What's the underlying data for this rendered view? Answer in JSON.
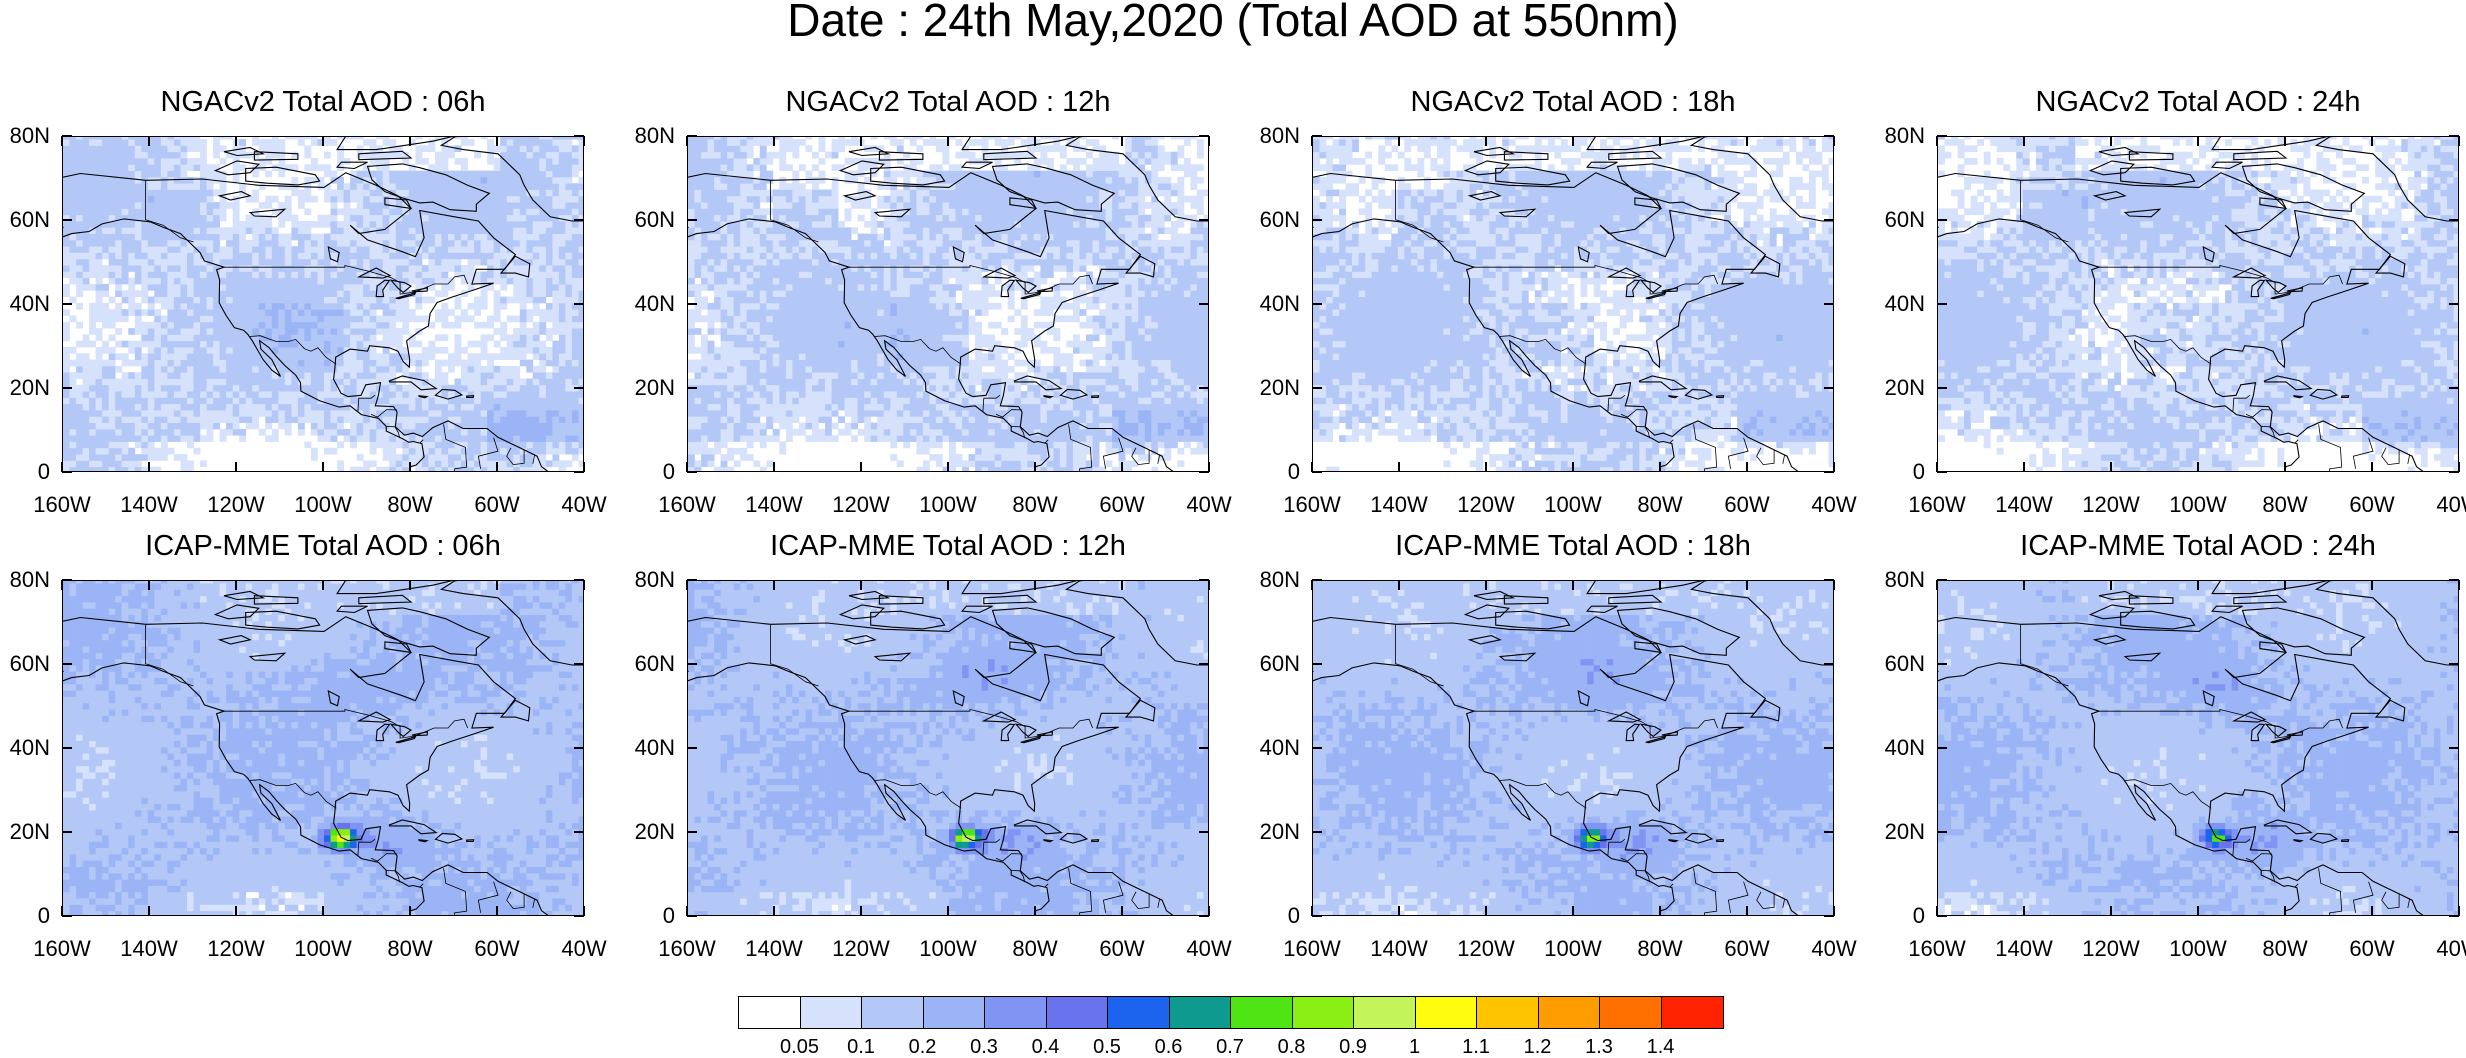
{
  "title": "Date : 24th May,2020 (Total AOD at 550nm)",
  "panels": [
    {
      "title": "NGACv2 Total AOD : 06h"
    },
    {
      "title": "NGACv2 Total AOD : 12h"
    },
    {
      "title": "NGACv2 Total AOD : 18h"
    },
    {
      "title": "NGACv2 Total AOD : 24h"
    },
    {
      "title": "ICAP-MME Total AOD : 06h"
    },
    {
      "title": "ICAP-MME Total AOD : 12h"
    },
    {
      "title": "ICAP-MME Total AOD : 18h"
    },
    {
      "title": "ICAP-MME Total AOD : 24h"
    }
  ],
  "axes": {
    "lat_labels": [
      "80N",
      "60N",
      "40N",
      "20N",
      "0"
    ],
    "lon_labels": [
      "160W",
      "140W",
      "120W",
      "100W",
      "80W",
      "60W",
      "40W"
    ]
  },
  "colorbar": {
    "labels": [
      "0.05",
      "0.1",
      "0.2",
      "0.3",
      "0.4",
      "0.5",
      "0.6",
      "0.7",
      "0.8",
      "0.9",
      "1",
      "1.1",
      "1.2",
      "1.3",
      "1.4"
    ],
    "colors": [
      "#ffffff",
      "#d6e1fb",
      "#b4c8f7",
      "#9ab4f6",
      "#7f94f3",
      "#6a73ee",
      "#1c63ee",
      "#0f9a8f",
      "#4fe414",
      "#8aef12",
      "#c3f55a",
      "#fffc0f",
      "#ffc400",
      "#ff9d00",
      "#ff7000",
      "#ff2200"
    ]
  }
}
